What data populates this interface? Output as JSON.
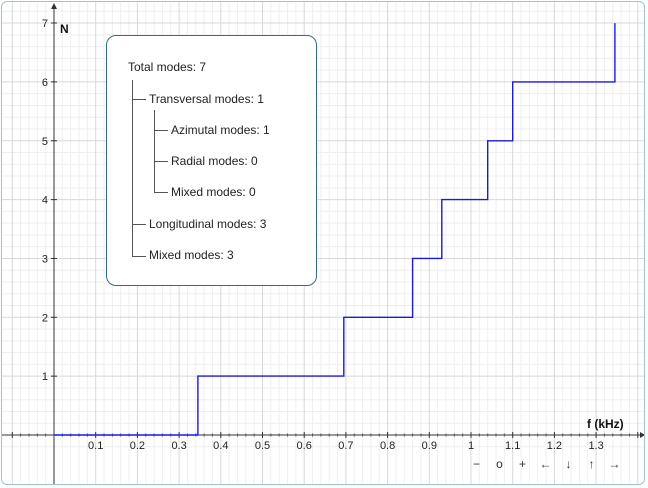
{
  "axes": {
    "y_label": "N",
    "x_label": "f (kHz)",
    "x_ticks": [
      "0.1",
      "0.2",
      "0.3",
      "0.4",
      "0.5",
      "0.6",
      "0.7",
      "0.8",
      "0.9",
      "1",
      "1.1",
      "1.2",
      "1.3"
    ],
    "y_ticks": [
      "1",
      "2",
      "3",
      "4",
      "5",
      "6",
      "7"
    ]
  },
  "legend": {
    "total": "Total modes: 7",
    "transversal": "Transversal modes: 1",
    "azimutal": "Azimutal modes: 1",
    "radial": "Radial modes: 0",
    "mixed_sub": "Mixed modes: 0",
    "longitudinal": "Longitudinal modes: 3",
    "mixed": "Mixed modes: 3"
  },
  "controls": {
    "zoom_out": "−",
    "reset": "o",
    "zoom_in": "+",
    "pan_left": "←",
    "pan_down": "↓",
    "pan_up": "↑",
    "pan_right": "→"
  },
  "chart_data": {
    "type": "line",
    "step": true,
    "xlabel": "f (kHz)",
    "ylabel": "N",
    "xlim": [
      -0.1,
      1.43
    ],
    "ylim": [
      -0.2,
      7.15
    ],
    "grid": true,
    "line_color": "#1a1adf",
    "series": [
      {
        "x": [
          0.0,
          0.345,
          0.345,
          0.695,
          0.695,
          0.86,
          0.86,
          0.93,
          0.93,
          1.04,
          1.04,
          1.1,
          1.1,
          1.345,
          1.345
        ],
        "y": [
          0,
          0,
          1,
          1,
          2,
          2,
          3,
          3,
          4,
          4,
          5,
          5,
          6,
          6,
          7
        ]
      }
    ]
  }
}
